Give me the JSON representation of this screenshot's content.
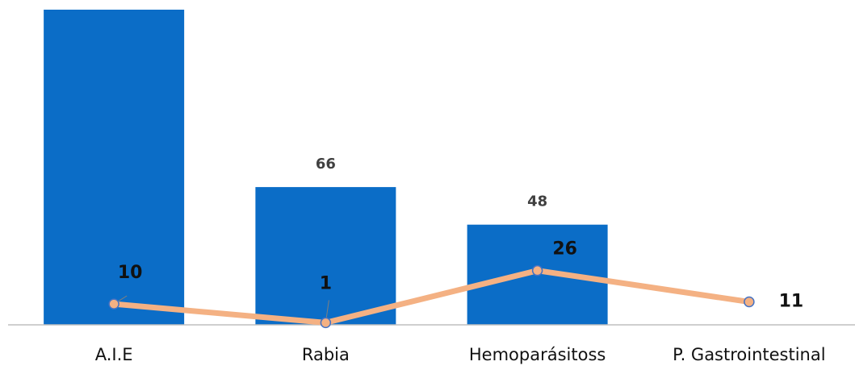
{
  "chart_data": {
    "type": "bar-line",
    "categories": [
      "A.I.E",
      "Rabia",
      "Hemoparásitoss",
      "P. Gastrointestinal"
    ],
    "series": [
      {
        "type": "bar",
        "color": "#0b6dc7",
        "values": [
          151,
          66,
          48,
          null
        ],
        "value_labels": [
          null,
          "66",
          "48",
          null
        ]
      },
      {
        "type": "line",
        "color": "#f4b183",
        "marker_color": "#4472c4",
        "values": [
          10,
          1,
          26,
          11
        ]
      }
    ],
    "ylim": [
      0,
      151
    ]
  }
}
